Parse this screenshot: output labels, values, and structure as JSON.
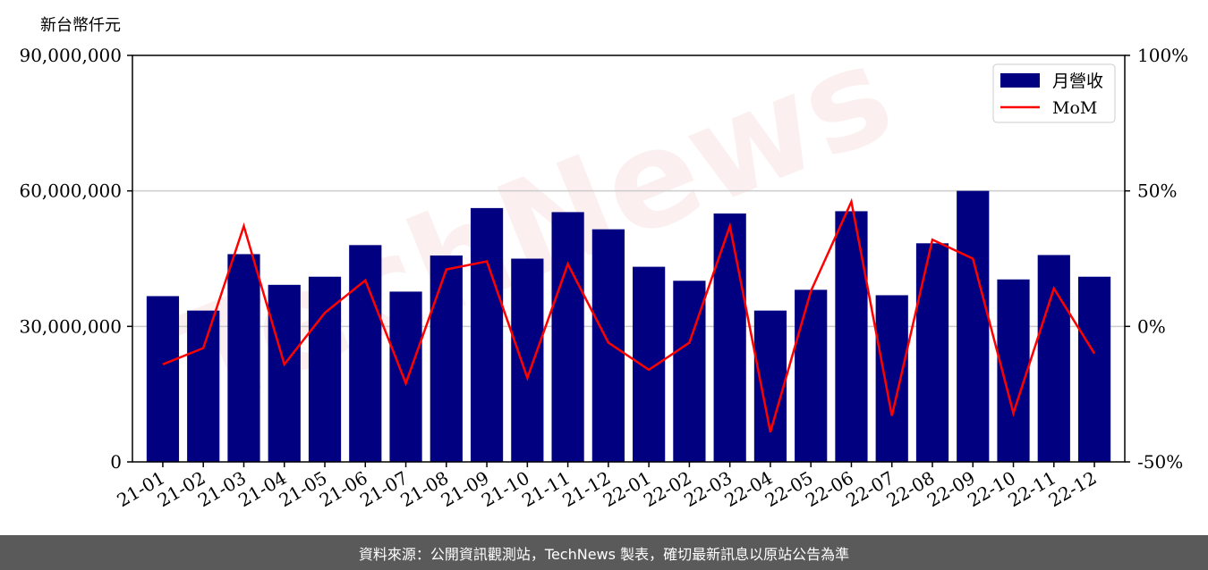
{
  "watermark": "TechNews",
  "unit_label": "新台幣仟元",
  "footer": "資料來源：公開資訊觀測站，TechNews 製表，確切最新訊息以原站公告為準",
  "chart_data": {
    "type": "bar",
    "categories": [
      "21-01",
      "21-02",
      "21-03",
      "21-04",
      "21-05",
      "21-06",
      "21-07",
      "21-08",
      "21-09",
      "21-10",
      "21-11",
      "21-12",
      "22-01",
      "22-02",
      "22-03",
      "22-04",
      "22-05",
      "22-06",
      "22-07",
      "22-08",
      "22-09",
      "22-10",
      "22-11",
      "22-12"
    ],
    "series": [
      {
        "name": "月營收",
        "type": "bar",
        "axis": "left",
        "color": "#000080",
        "values": [
          36700000,
          33500000,
          46000000,
          39200000,
          41000000,
          48000000,
          37700000,
          45700000,
          56200000,
          45000000,
          55300000,
          51500000,
          43200000,
          40100000,
          55000000,
          33500000,
          38100000,
          55500000,
          36900000,
          48400000,
          60000000,
          40400000,
          45800000,
          41000000
        ]
      },
      {
        "name": "MoM",
        "type": "line",
        "axis": "right",
        "color": "#ff0000",
        "values": [
          -14,
          -8,
          37,
          -14,
          5,
          17,
          -21,
          21,
          24,
          -19,
          23,
          -6,
          -16,
          -6,
          37,
          -39,
          13,
          46,
          -33,
          32,
          25,
          -32,
          14,
          -10
        ]
      }
    ],
    "left_axis": {
      "ylim": [
        0,
        90000000
      ],
      "ticks": [
        "0",
        "30,000,000",
        "60,000,000",
        "90,000,000"
      ],
      "tick_values": [
        0,
        30000000,
        60000000,
        90000000
      ]
    },
    "right_axis": {
      "ylim": [
        -50,
        100
      ],
      "ticks": [
        "-50%",
        "0%",
        "50%",
        "100%"
      ],
      "tick_values": [
        -50,
        0,
        50,
        100
      ]
    },
    "grid": "horizontal",
    "legend": "top-right"
  }
}
